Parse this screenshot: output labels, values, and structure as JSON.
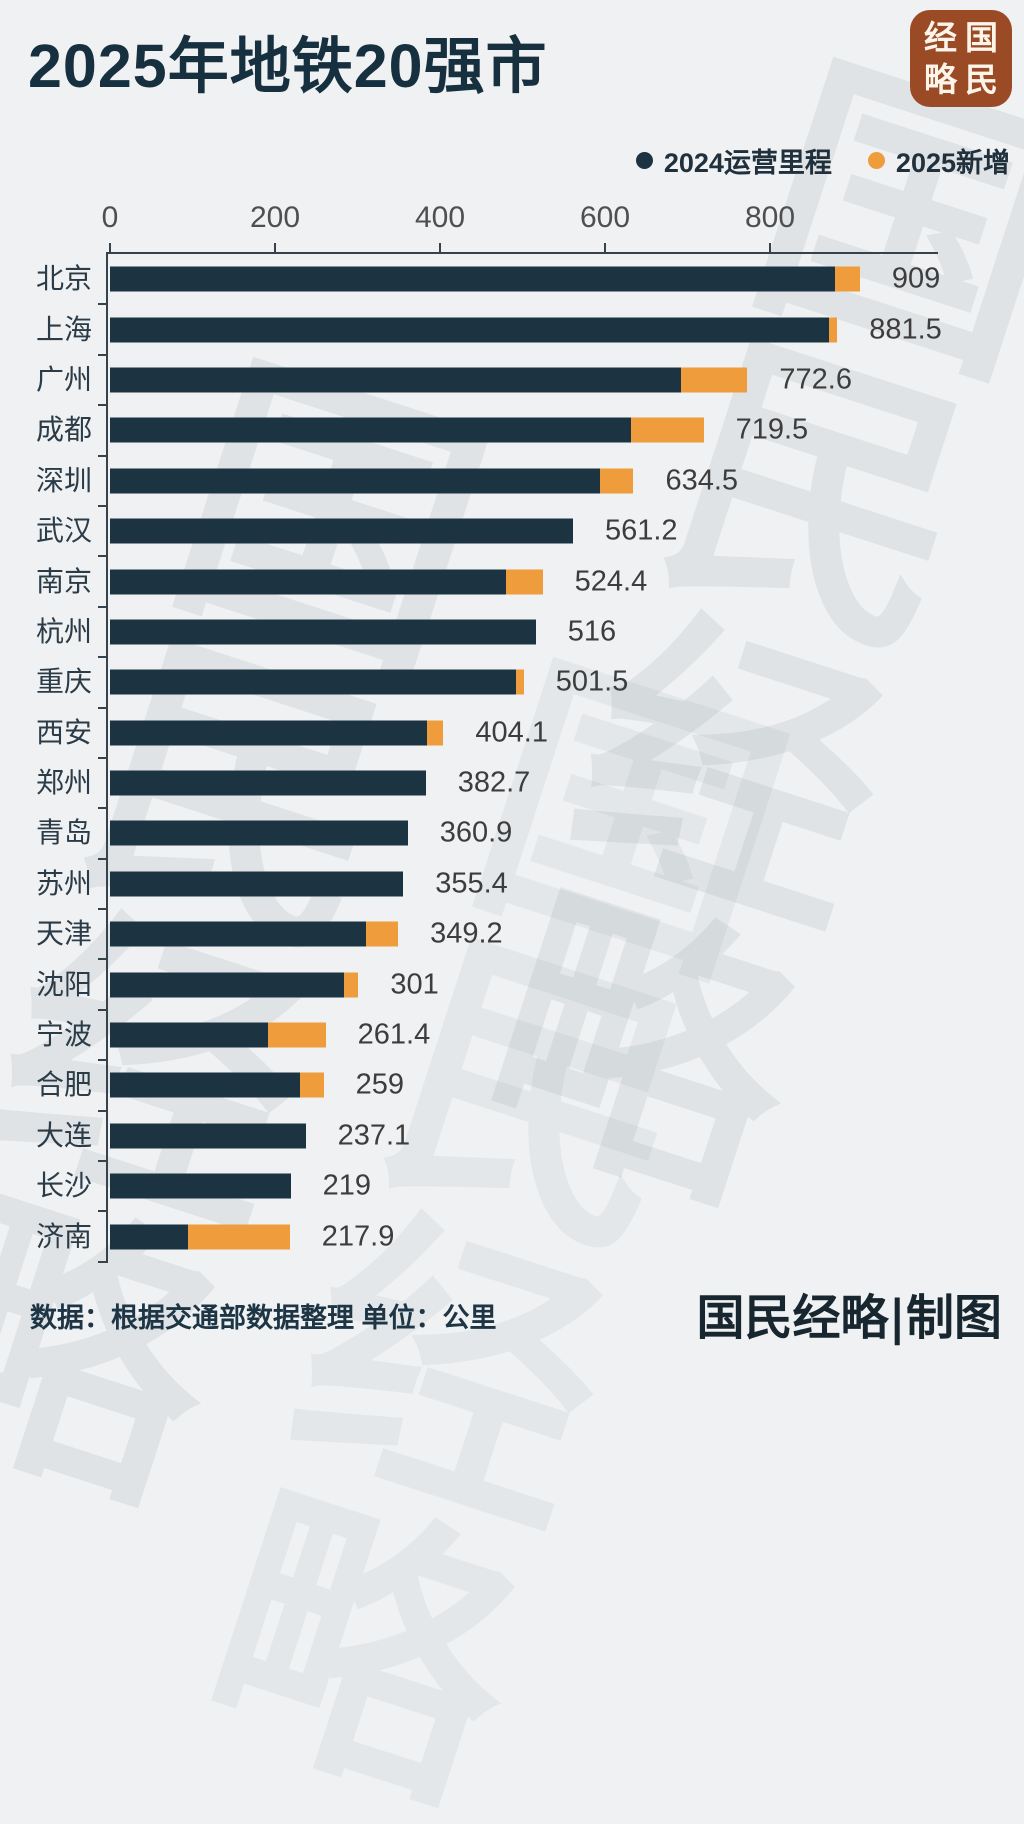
{
  "title": "2025年地铁20强市",
  "logo": {
    "chars": [
      "经",
      "国",
      "略",
      "民"
    ],
    "bg_color": "#9b4a26"
  },
  "legend": [
    {
      "label": "2024运营里程",
      "color": "#1c3441"
    },
    {
      "label": "2025新增",
      "color": "#ef9d3c"
    }
  ],
  "footer": {
    "source": "数据：根据交通部数据整理 单位：公里",
    "credit": "国民经略|制图"
  },
  "watermark": {
    "text": "国民经略"
  },
  "colors": {
    "background": "#eff1f2",
    "bar_2024": "#1c3441",
    "bar_2025_new": "#ef9d3c",
    "title_text": "#16303f",
    "axis": "#36434c",
    "value_text": "#3d3d3d",
    "logo_bg": "#9b4a26"
  },
  "chart_data": {
    "type": "bar",
    "orientation": "horizontal",
    "title": "2025年地铁20强市",
    "unit": "公里",
    "x_ticks": [
      0,
      200,
      400,
      600,
      800
    ],
    "x_range": [
      0,
      1000
    ],
    "grid": false,
    "legend_position": "top-right",
    "series_names": [
      "2024运营里程",
      "2025新增"
    ],
    "rows": [
      {
        "city": "北京",
        "total": 909,
        "total_label": "909",
        "v2024": 879,
        "v2025_new": 30
      },
      {
        "city": "上海",
        "total": 881.5,
        "total_label": "881.5",
        "v2024": 872,
        "v2025_new": 9.5
      },
      {
        "city": "广州",
        "total": 772.6,
        "total_label": "772.6",
        "v2024": 692,
        "v2025_new": 80.6
      },
      {
        "city": "成都",
        "total": 719.5,
        "total_label": "719.5",
        "v2024": 631,
        "v2025_new": 88.5
      },
      {
        "city": "深圳",
        "total": 634.5,
        "total_label": "634.5",
        "v2024": 594,
        "v2025_new": 40.5
      },
      {
        "city": "武汉",
        "total": 561.2,
        "total_label": "561.2",
        "v2024": 561.2,
        "v2025_new": 0
      },
      {
        "city": "南京",
        "total": 524.4,
        "total_label": "524.4",
        "v2024": 480,
        "v2025_new": 44.4
      },
      {
        "city": "杭州",
        "total": 516,
        "total_label": "516",
        "v2024": 516,
        "v2025_new": 0
      },
      {
        "city": "重庆",
        "total": 501.5,
        "total_label": "501.5",
        "v2024": 492,
        "v2025_new": 9.5
      },
      {
        "city": "西安",
        "total": 404.1,
        "total_label": "404.1",
        "v2024": 384,
        "v2025_new": 20.1
      },
      {
        "city": "郑州",
        "total": 382.7,
        "total_label": "382.7",
        "v2024": 382.7,
        "v2025_new": 0
      },
      {
        "city": "青岛",
        "total": 360.9,
        "total_label": "360.9",
        "v2024": 360.9,
        "v2025_new": 0
      },
      {
        "city": "苏州",
        "total": 355.4,
        "total_label": "355.4",
        "v2024": 355.4,
        "v2025_new": 0
      },
      {
        "city": "天津",
        "total": 349.2,
        "total_label": "349.2",
        "v2024": 310,
        "v2025_new": 39.2
      },
      {
        "city": "沈阳",
        "total": 301,
        "total_label": "301",
        "v2024": 284,
        "v2025_new": 17
      },
      {
        "city": "宁波",
        "total": 261.4,
        "total_label": "261.4",
        "v2024": 192,
        "v2025_new": 69.4
      },
      {
        "city": "合肥",
        "total": 259,
        "total_label": "259",
        "v2024": 230,
        "v2025_new": 29
      },
      {
        "city": "大连",
        "total": 237.1,
        "total_label": "237.1",
        "v2024": 237.1,
        "v2025_new": 0
      },
      {
        "city": "长沙",
        "total": 219,
        "total_label": "219",
        "v2024": 219,
        "v2025_new": 0
      },
      {
        "city": "济南",
        "total": 217.9,
        "total_label": "217.9",
        "v2024": 94.5,
        "v2025_new": 123.4
      }
    ]
  }
}
